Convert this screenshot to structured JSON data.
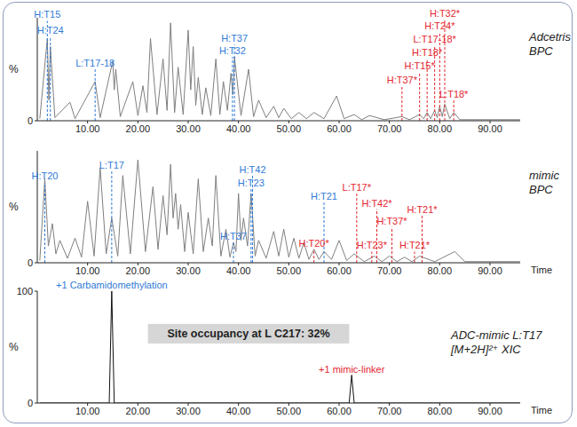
{
  "chart_data": [
    {
      "type": "line",
      "title": [
        "Adcetris",
        "BPC"
      ],
      "y_label": "%",
      "color": "#7f7f7f",
      "xlim": [
        0,
        96
      ],
      "ylim": [
        0,
        100
      ],
      "xticks": [
        {
          "value": 10,
          "label": "10.00"
        },
        {
          "value": 20,
          "label": "20.00"
        },
        {
          "value": 30,
          "label": "30.00"
        },
        {
          "value": 40,
          "label": "40.00"
        },
        {
          "value": 50,
          "label": "50.00"
        },
        {
          "value": 60,
          "label": "60.00"
        },
        {
          "value": 70,
          "label": "70.00"
        },
        {
          "value": 80,
          "label": "80.00"
        },
        {
          "value": 90,
          "label": "90.00"
        }
      ],
      "yticks": [
        0
      ],
      "x": [
        0.5,
        2.0,
        2.3,
        2.6,
        3.5,
        6.5,
        7.5,
        11.5,
        12.5,
        15,
        15.3,
        15.6,
        16.5,
        19,
        20,
        21,
        21.8,
        22.5,
        23.8,
        25,
        25.8,
        26.5,
        27.3,
        28,
        29,
        30,
        30.5,
        31,
        31.5,
        32,
        32.8,
        33.5,
        34.5,
        35.5,
        36.3,
        37,
        37.8,
        38.5,
        38.9,
        39.2,
        40.5,
        42,
        43,
        44,
        45.5,
        47,
        48,
        49,
        50.5,
        52,
        53.5,
        55,
        57,
        59.5,
        61,
        63,
        64.5,
        66,
        69,
        72.5,
        74,
        76,
        76.8,
        77.5,
        78.2,
        79,
        79.5,
        80,
        80.5,
        81,
        82,
        82.8,
        84,
        96
      ],
      "values": [
        2,
        80,
        20,
        72,
        3,
        18,
        2,
        38,
        3,
        58,
        30,
        50,
        4,
        38,
        5,
        34,
        8,
        80,
        6,
        60,
        10,
        95,
        8,
        52,
        6,
        88,
        30,
        72,
        15,
        42,
        6,
        32,
        5,
        60,
        6,
        38,
        10,
        46,
        25,
        62,
        5,
        50,
        4,
        20,
        3,
        14,
        3,
        12,
        2,
        8,
        2,
        8,
        2,
        24,
        2,
        6,
        1,
        5,
        1,
        4,
        1,
        6,
        2,
        8,
        2,
        10,
        3,
        14,
        4,
        16,
        2,
        8,
        1,
        1
      ],
      "peak_labels": [
        {
          "label": "H:T15",
          "x": 2.0,
          "y": 97,
          "color": "#2f7ad6"
        },
        {
          "label": "H:T24",
          "x": 2.6,
          "y": 82,
          "color": "#2f7ad6"
        },
        {
          "label": "L:T17-18",
          "x": 11.5,
          "y": 50,
          "color": "#2f7ad6"
        },
        {
          "label": "H:T37",
          "x": 39.2,
          "y": 74,
          "color": "#2f7ad6"
        },
        {
          "label": "H:T32",
          "x": 38.8,
          "y": 62,
          "color": "#2f7ad6"
        },
        {
          "label": "H:T32*",
          "x": 81,
          "y": 98,
          "color": "#e3262e"
        },
        {
          "label": "H:T24*",
          "x": 80,
          "y": 86,
          "color": "#e3262e"
        },
        {
          "label": "L:T17-18*",
          "x": 79,
          "y": 73,
          "color": "#e3262e"
        },
        {
          "label": "H:T18*",
          "x": 77.5,
          "y": 60,
          "color": "#e3262e"
        },
        {
          "label": "H:T15*",
          "x": 76,
          "y": 47,
          "color": "#e3262e"
        },
        {
          "label": "H:T37*",
          "x": 72.5,
          "y": 34,
          "color": "#e3262e"
        },
        {
          "label": "L:T18*",
          "x": 82.8,
          "y": 20,
          "color": "#e3262e"
        }
      ]
    },
    {
      "type": "line",
      "title": [
        "mimic",
        "BPC"
      ],
      "y_label": "%",
      "x_label": "Time",
      "color": "#7f7f7f",
      "xlim": [
        0,
        96
      ],
      "ylim": [
        0,
        100
      ],
      "xticks": [
        {
          "value": 10,
          "label": "10.00"
        },
        {
          "value": 20,
          "label": "20.00"
        },
        {
          "value": 30,
          "label": "30.00"
        },
        {
          "value": 40,
          "label": "40.00"
        },
        {
          "value": 50,
          "label": "50.00"
        },
        {
          "value": 60,
          "label": "60.00"
        },
        {
          "value": 70,
          "label": "70.00"
        },
        {
          "value": 80,
          "label": "80.00"
        },
        {
          "value": 90,
          "label": "90.00"
        }
      ],
      "yticks": [
        0
      ],
      "x": [
        0.5,
        1.5,
        2.2,
        3,
        3.7,
        4.5,
        6,
        7.5,
        8.8,
        10,
        11.3,
        12.5,
        13.7,
        14.8,
        16,
        17,
        18.5,
        20,
        21.5,
        23,
        24,
        25,
        25.8,
        26.5,
        27,
        27.5,
        28,
        28.5,
        29.3,
        30,
        31,
        32,
        33,
        34,
        34.8,
        35.5,
        36.5,
        37.5,
        38.3,
        39,
        39.5,
        40,
        40.5,
        41,
        41.8,
        42.5,
        43.3,
        44,
        45.5,
        47,
        48,
        49,
        50,
        51,
        52,
        53,
        54,
        55,
        56,
        57,
        58.5,
        60,
        61.5,
        63,
        65,
        67,
        68.5,
        70,
        71.5,
        73,
        74.5,
        76,
        79,
        83,
        85,
        96
      ],
      "values": [
        2,
        75,
        15,
        35,
        8,
        20,
        4,
        22,
        5,
        55,
        6,
        85,
        8,
        40,
        6,
        78,
        8,
        92,
        10,
        68,
        12,
        60,
        25,
        88,
        40,
        62,
        30,
        52,
        10,
        45,
        8,
        75,
        10,
        40,
        15,
        78,
        6,
        30,
        5,
        18,
        10,
        62,
        20,
        40,
        15,
        62,
        6,
        20,
        4,
        28,
        6,
        30,
        5,
        22,
        4,
        18,
        3,
        12,
        3,
        10,
        3,
        20,
        2,
        8,
        1,
        6,
        1,
        6,
        1,
        5,
        1,
        6,
        1,
        10,
        1,
        1
      ],
      "peak_labels": [
        {
          "label": "H:T20",
          "x": 1.5,
          "y": 72,
          "color": "#2f7ad6"
        },
        {
          "label": "L:T17",
          "x": 14.8,
          "y": 82,
          "color": "#2f7ad6"
        },
        {
          "label": "H:T37",
          "x": 39,
          "y": 18,
          "color": "#2f7ad6"
        },
        {
          "label": "H:T23",
          "x": 42.5,
          "y": 66,
          "color": "#2f7ad6"
        },
        {
          "label": "H:T42",
          "x": 42.8,
          "y": 78,
          "color": "#2f7ad6"
        },
        {
          "label": "H:T21",
          "x": 57,
          "y": 54,
          "color": "#2f7ad6"
        },
        {
          "label": "H:T20*",
          "x": 55,
          "y": 12,
          "color": "#e3262e"
        },
        {
          "label": "L:T17*",
          "x": 63.5,
          "y": 62,
          "color": "#e3262e"
        },
        {
          "label": "H:T42*",
          "x": 67.5,
          "y": 48,
          "color": "#e3262e"
        },
        {
          "label": "H:T37*",
          "x": 70.5,
          "y": 32,
          "color": "#e3262e"
        },
        {
          "label": "H:T23*",
          "x": 66.5,
          "y": 10,
          "color": "#e3262e"
        },
        {
          "label": "H:T21*",
          "x": 76.5,
          "y": 42,
          "color": "#e3262e"
        },
        {
          "label": "H:T21*",
          "x": 75,
          "y": 10,
          "color": "#e3262e"
        }
      ]
    },
    {
      "type": "line",
      "title": [
        "ADC-mimic L:T17",
        "[M+2H]²⁺ XIC"
      ],
      "y_label": "%",
      "x_label": "Time",
      "color": "#111111",
      "xlim": [
        0,
        96
      ],
      "ylim": [
        0,
        100
      ],
      "xticks": [
        {
          "value": 10,
          "label": "10.00"
        },
        {
          "value": 20,
          "label": "20.00"
        },
        {
          "value": 30,
          "label": "30.00"
        },
        {
          "value": 40,
          "label": "40.00"
        },
        {
          "value": 50,
          "label": "50.00"
        },
        {
          "value": 60,
          "label": "60.00"
        },
        {
          "value": 70,
          "label": "70.00"
        },
        {
          "value": 80,
          "label": "80.00"
        },
        {
          "value": 90,
          "label": "90.00"
        }
      ],
      "yticks": [
        0,
        100
      ],
      "x": [
        0.5,
        14.3,
        14.8,
        15.3,
        62.0,
        62.5,
        63.0,
        96
      ],
      "values": [
        0,
        0,
        100,
        0,
        0,
        25,
        0,
        0
      ],
      "annotations": [
        {
          "text": "+1 Carbamidomethylation",
          "x": 14.8,
          "y": 100,
          "color": "#2f7ad6"
        },
        {
          "text": "+1 mimic-linker",
          "x": 62.5,
          "y": 25,
          "color": "#e3262e"
        },
        {
          "text": "Site occupancy at L C217: 32%",
          "x": 42,
          "y": 62,
          "color": "#222222",
          "boxed": true
        }
      ]
    }
  ]
}
